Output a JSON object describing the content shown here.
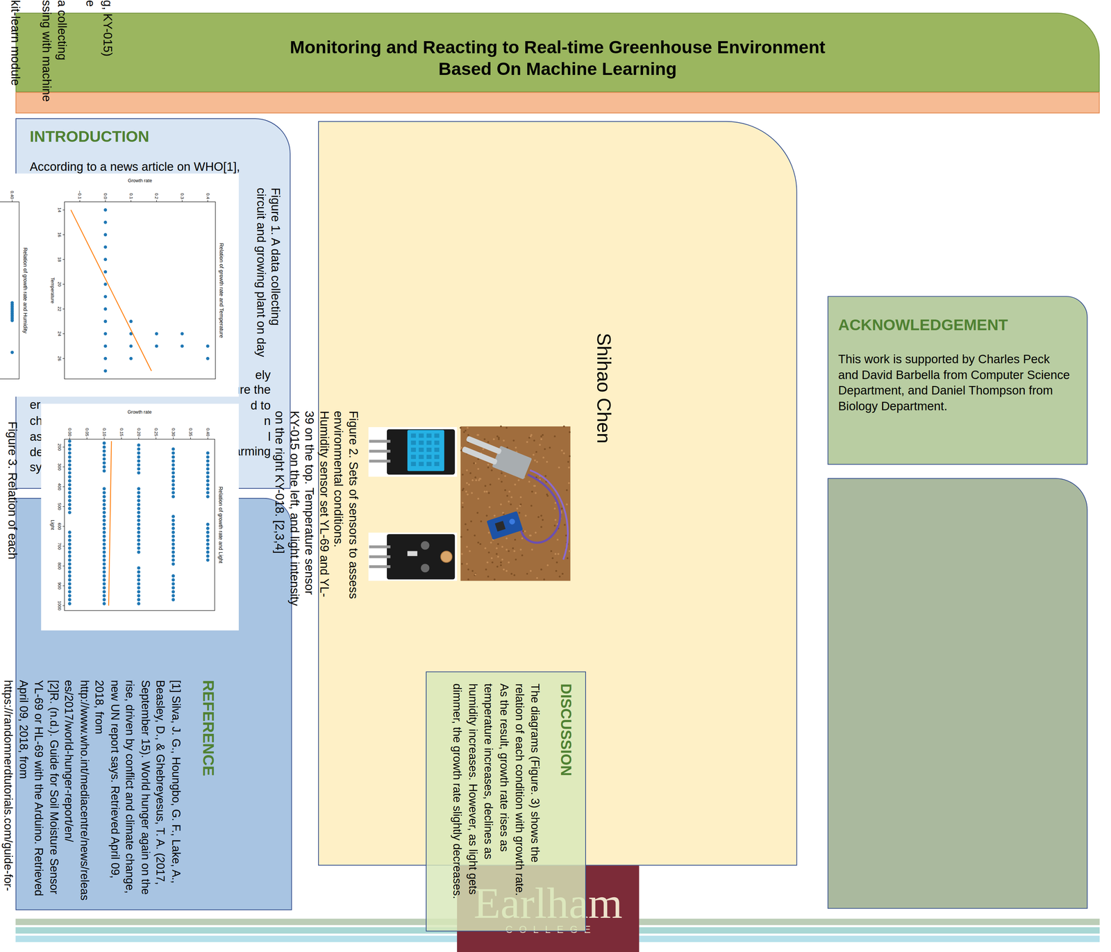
{
  "header": {
    "title": [
      "Monitoring and Reacting to Real-time Greenhouse Environment",
      "Based On Machine Learning"
    ]
  },
  "fragments": [
    "g, KY-015)",
    "e",
    "a collecting",
    "ssing with machine",
    "kit-learn module"
  ],
  "introduction": {
    "heading": "INTRODUCTION",
    "lines": [
      "According to a news article on WHO[1],"
    ],
    "left_fragments": [
      "er",
      "ch",
      "as",
      "de",
      "sy"
    ],
    "right_fragments": [
      "ely",
      "ure the",
      "d to",
      "n",
      "l",
      "arming"
    ]
  },
  "figure1_caption": [
    "Figure 1. A data collecting",
    "circuit and growing plant on day"
  ],
  "figure2_caption": [
    "Figure 2. Sets of sensors to assess",
    "environmental conditions.",
    "Humidity sensor set YL-69 and YL-",
    "39 on the top. Temperature sensor",
    "KY-015 on the left, and light intensity",
    "on the right KY-018. [2,3,4]"
  ],
  "figure3_caption": [
    "Figure 3. Relation of each"
  ],
  "author": "Shihao Chen",
  "discussion": {
    "heading": "DISCUSSION",
    "lines": [
      "The diagrams (Figure. 3) shows the",
      "relation of each condition with growth rate.",
      "As the result, growth rate rises as",
      "temperature increases, declines as",
      "humidity increases. However, as light gets",
      "dimmer, the growth rate slightly decreases."
    ]
  },
  "reference": {
    "heading": "REFERENCE",
    "lines": [
      "[1] Silva, J. G., Houngbo, G. F., Lake, A.,",
      "Beasley, D., & Ghebreyesus, T. A. (2017,",
      "September 15). World hunger again on the",
      "rise, driven by conflict and climate change,",
      "new UN report says. Retrieved April 09,",
      "2018, from",
      "http://www.who.int/mediacentre/news/releas",
      "es/2017/world-hunger-report/en/",
      "[2]R. (n.d.). Guide for Soil Moisture Sensor",
      "YL-69 or HL-69 with the Arduino. Retrieved",
      "April 09, 2018, from",
      "https://randomnerdtutorials.com/guide-for-"
    ]
  },
  "acknowledgement": {
    "heading": "ACKNOWLEDGEMENT",
    "lines": [
      "This work is supported by Charles Peck",
      "and David Barbella from Computer Science",
      "Department, and Daniel Thompson from",
      "Biology Department."
    ]
  },
  "logo": {
    "name": "Earlham",
    "sub": "COLLEGE"
  },
  "chart_data": [
    {
      "type": "scatter",
      "title": "Relation of growth rate and Temperature",
      "x_label": "Temperature",
      "y_label": "Growth rate",
      "xlim": [
        13.35,
        27.65
      ],
      "ylim": [
        -0.16,
        0.43
      ],
      "xticks": [
        14,
        16,
        18,
        20,
        22,
        24,
        26
      ],
      "yticks": [
        {
          "value": -0.1,
          "label": "−0.1"
        },
        {
          "value": 0,
          "label": "0.0"
        },
        {
          "value": 0.1,
          "label": "0.1"
        },
        {
          "value": 0.2,
          "label": "0.2"
        },
        {
          "value": 0.3,
          "label": "0.3"
        },
        {
          "value": 0.4,
          "label": "0.4"
        }
      ],
      "series": [
        {
          "color": "#1f77b4",
          "marker": "circle",
          "x": [
            14,
            15,
            16,
            17,
            18,
            19,
            20,
            21,
            22,
            23,
            24,
            25,
            26,
            27,
            23,
            24,
            25,
            26,
            24,
            25,
            24,
            25,
            25,
            26
          ],
          "values": [
            0,
            0,
            0,
            0,
            0,
            0,
            0,
            0,
            0,
            0,
            0,
            0,
            0,
            0,
            0.1,
            0.1,
            0.1,
            0.1,
            0.2,
            0.2,
            0.3,
            0.3,
            0.4,
            0.4
          ]
        },
        {
          "type": "line",
          "color": "#ff7f0e",
          "line_style": "solid",
          "x": [
            14,
            27
          ],
          "values": [
            -0.135,
            0.18
          ]
        }
      ]
    },
    {
      "type": "scatter",
      "title": "Relation of growth rate and Light",
      "x_label": "Light",
      "y_label": "Growth rate",
      "xlim": [
        160,
        1025
      ],
      "ylim": [
        -0.015,
        0.42
      ],
      "xticks": [
        200,
        300,
        400,
        500,
        600,
        700,
        800,
        900,
        1000
      ],
      "yticks": [
        {
          "value": 0,
          "label": "0.00"
        },
        {
          "value": 0.05,
          "label": "0.05"
        },
        {
          "value": 0.1,
          "label": "0.10"
        },
        {
          "value": 0.15,
          "label": "0.15"
        },
        {
          "value": 0.2,
          "label": "0.20"
        },
        {
          "value": 0.25,
          "label": "0.25"
        },
        {
          "value": 0.3,
          "label": "0.30"
        },
        {
          "value": 0.35,
          "label": "0.35"
        },
        {
          "value": 0.4,
          "label": "0.40"
        }
      ],
      "series": [
        {
          "color": "#1f77b4",
          "marker": "circle",
          "x": [
            170,
            190,
            210,
            230,
            250,
            270,
            290,
            310,
            330,
            350,
            370,
            390,
            410,
            430,
            450,
            470,
            490,
            510,
            530,
            630,
            650,
            670,
            690,
            710,
            730,
            750,
            770,
            790,
            810,
            830,
            850,
            870,
            890,
            910,
            930,
            950,
            970,
            990
          ],
          "values": [
            0,
            0,
            0,
            0,
            0,
            0,
            0,
            0,
            0,
            0,
            0,
            0,
            0,
            0,
            0,
            0,
            0,
            0,
            0,
            0,
            0,
            0,
            0,
            0,
            0,
            0,
            0,
            0,
            0,
            0,
            0,
            0,
            0,
            0,
            0,
            0,
            0,
            0
          ]
        },
        {
          "color": "#1f77b4",
          "marker": "circle",
          "x": [
            180,
            200,
            220,
            240,
            260,
            280,
            300,
            320,
            410,
            430,
            450,
            470,
            490,
            510,
            530,
            550,
            570,
            590,
            610,
            630,
            650,
            670,
            690,
            710,
            730,
            750,
            770,
            790,
            810,
            830,
            850,
            870,
            890,
            910,
            930,
            950,
            970,
            990
          ],
          "values": [
            0.1,
            0.1,
            0.1,
            0.1,
            0.1,
            0.1,
            0.1,
            0.1,
            0.1,
            0.1,
            0.1,
            0.1,
            0.1,
            0.1,
            0.1,
            0.1,
            0.1,
            0.1,
            0.1,
            0.1,
            0.1,
            0.1,
            0.1,
            0.1,
            0.1,
            0.1,
            0.1,
            0.1,
            0.1,
            0.1,
            0.1,
            0.1,
            0.1,
            0.1,
            0.1,
            0.1,
            0.1,
            0.1
          ]
        },
        {
          "color": "#1f77b4",
          "marker": "circle",
          "x": [
            190,
            210,
            230,
            250,
            270,
            290,
            310,
            330,
            410,
            430,
            450,
            470,
            490,
            510,
            530,
            550,
            570,
            590,
            610,
            630,
            650,
            670,
            690,
            710,
            730,
            810,
            830,
            850,
            870,
            890,
            910,
            930,
            950,
            970,
            990
          ],
          "values": [
            0.2,
            0.2,
            0.2,
            0.2,
            0.2,
            0.2,
            0.2,
            0.2,
            0.2,
            0.2,
            0.2,
            0.2,
            0.2,
            0.2,
            0.2,
            0.2,
            0.2,
            0.2,
            0.2,
            0.2,
            0.2,
            0.2,
            0.2,
            0.2,
            0.2,
            0.2,
            0.2,
            0.2,
            0.2,
            0.2,
            0.2,
            0.2,
            0.2,
            0.2,
            0.2
          ]
        },
        {
          "color": "#1f77b4",
          "marker": "circle",
          "x": [
            210,
            230,
            250,
            270,
            290,
            310,
            330,
            350,
            370,
            390,
            410,
            430,
            450,
            550,
            570,
            590,
            610,
            630,
            650,
            670,
            690,
            710,
            730,
            750,
            770,
            790,
            850,
            870,
            890,
            910,
            930,
            950,
            970
          ],
          "values": [
            0.3,
            0.3,
            0.3,
            0.3,
            0.3,
            0.3,
            0.3,
            0.3,
            0.3,
            0.3,
            0.3,
            0.3,
            0.3,
            0.3,
            0.3,
            0.3,
            0.3,
            0.3,
            0.3,
            0.3,
            0.3,
            0.3,
            0.3,
            0.3,
            0.3,
            0.3,
            0.3,
            0.3,
            0.3,
            0.3,
            0.3,
            0.3,
            0.3
          ]
        },
        {
          "color": "#1f77b4",
          "marker": "circle",
          "x": [
            230,
            250,
            270,
            290,
            310,
            330,
            350,
            370,
            390,
            410,
            430,
            450,
            590,
            610,
            630,
            650,
            670,
            690,
            710,
            730,
            750,
            770
          ],
          "values": [
            0.4,
            0.4,
            0.4,
            0.4,
            0.4,
            0.4,
            0.4,
            0.4,
            0.4,
            0.4,
            0.4,
            0.4,
            0.4,
            0.4,
            0.4,
            0.4,
            0.4,
            0.4,
            0.4,
            0.4,
            0.4,
            0.4
          ]
        },
        {
          "type": "line",
          "color": "#ff7f0e",
          "line_style": "solid",
          "x": [
            170,
            1000
          ],
          "values": [
            0.121,
            0.113
          ]
        }
      ]
    },
    {
      "type": "scatter",
      "title": "Relation of growth rate and Humidity",
      "tick_labels": "y",
      "xlim": [
        0,
        100
      ],
      "ylim": [
        -0.015,
        0.42
      ],
      "yticks": [
        {
          "value": 0.4,
          "label": "0.40"
        }
      ],
      "series": [
        {
          "color": "#1f77b4",
          "marker": "circle",
          "x": [
            57,
            58,
            59,
            60,
            61,
            62,
            63,
            64,
            65,
            66,
            67,
            85
          ],
          "values": [
            0.4,
            0.4,
            0.4,
            0.4,
            0.4,
            0.4,
            0.4,
            0.4,
            0.4,
            0.4,
            0.4,
            0.4
          ]
        }
      ]
    }
  ]
}
